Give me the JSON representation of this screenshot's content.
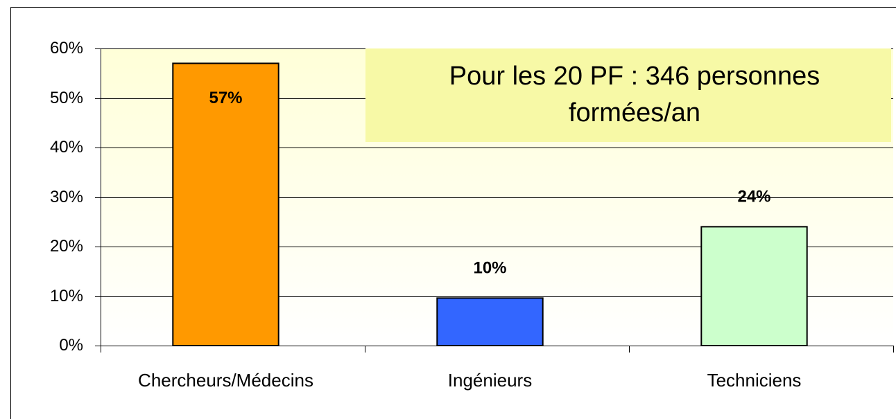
{
  "chart_data": {
    "type": "bar",
    "categories": [
      "Chercheurs/Médecins",
      "Ingénieurs",
      "Techniciens"
    ],
    "values": [
      57,
      9.6,
      24
    ],
    "value_labels": [
      "57%",
      "10%",
      "24%"
    ],
    "colors": [
      "#ff9900",
      "#3366ff",
      "#ccffcc"
    ],
    "ylim": [
      0,
      60
    ],
    "yticks": [
      {
        "value": 0,
        "label": "0%"
      },
      {
        "value": 10,
        "label": "10%"
      },
      {
        "value": 20,
        "label": "20%"
      },
      {
        "value": 30,
        "label": "30%"
      },
      {
        "value": 40,
        "label": "40%"
      },
      {
        "value": 50,
        "label": "50%"
      },
      {
        "value": 60,
        "label": "60%"
      }
    ],
    "grid": true,
    "annotation": [
      "Pour les 20 PF : 346 personnes",
      "formées/an"
    ]
  }
}
